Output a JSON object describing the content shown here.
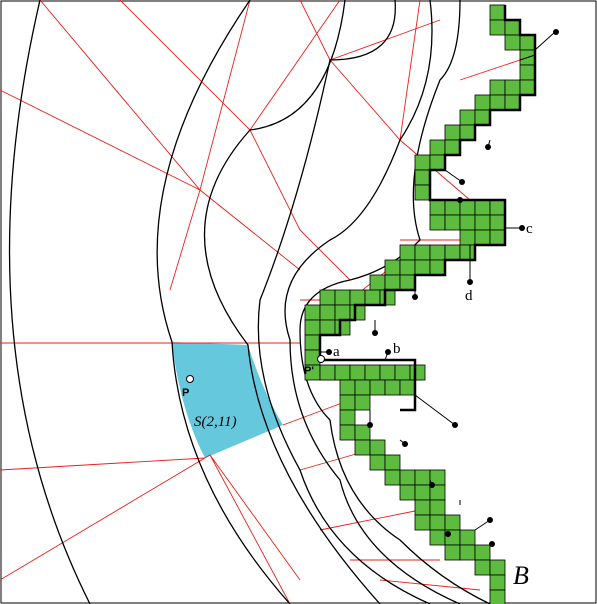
{
  "labels": [
    "c",
    "d",
    "a",
    "b",
    "P'",
    "P",
    "S(2,11)",
    "B"
  ]
}
